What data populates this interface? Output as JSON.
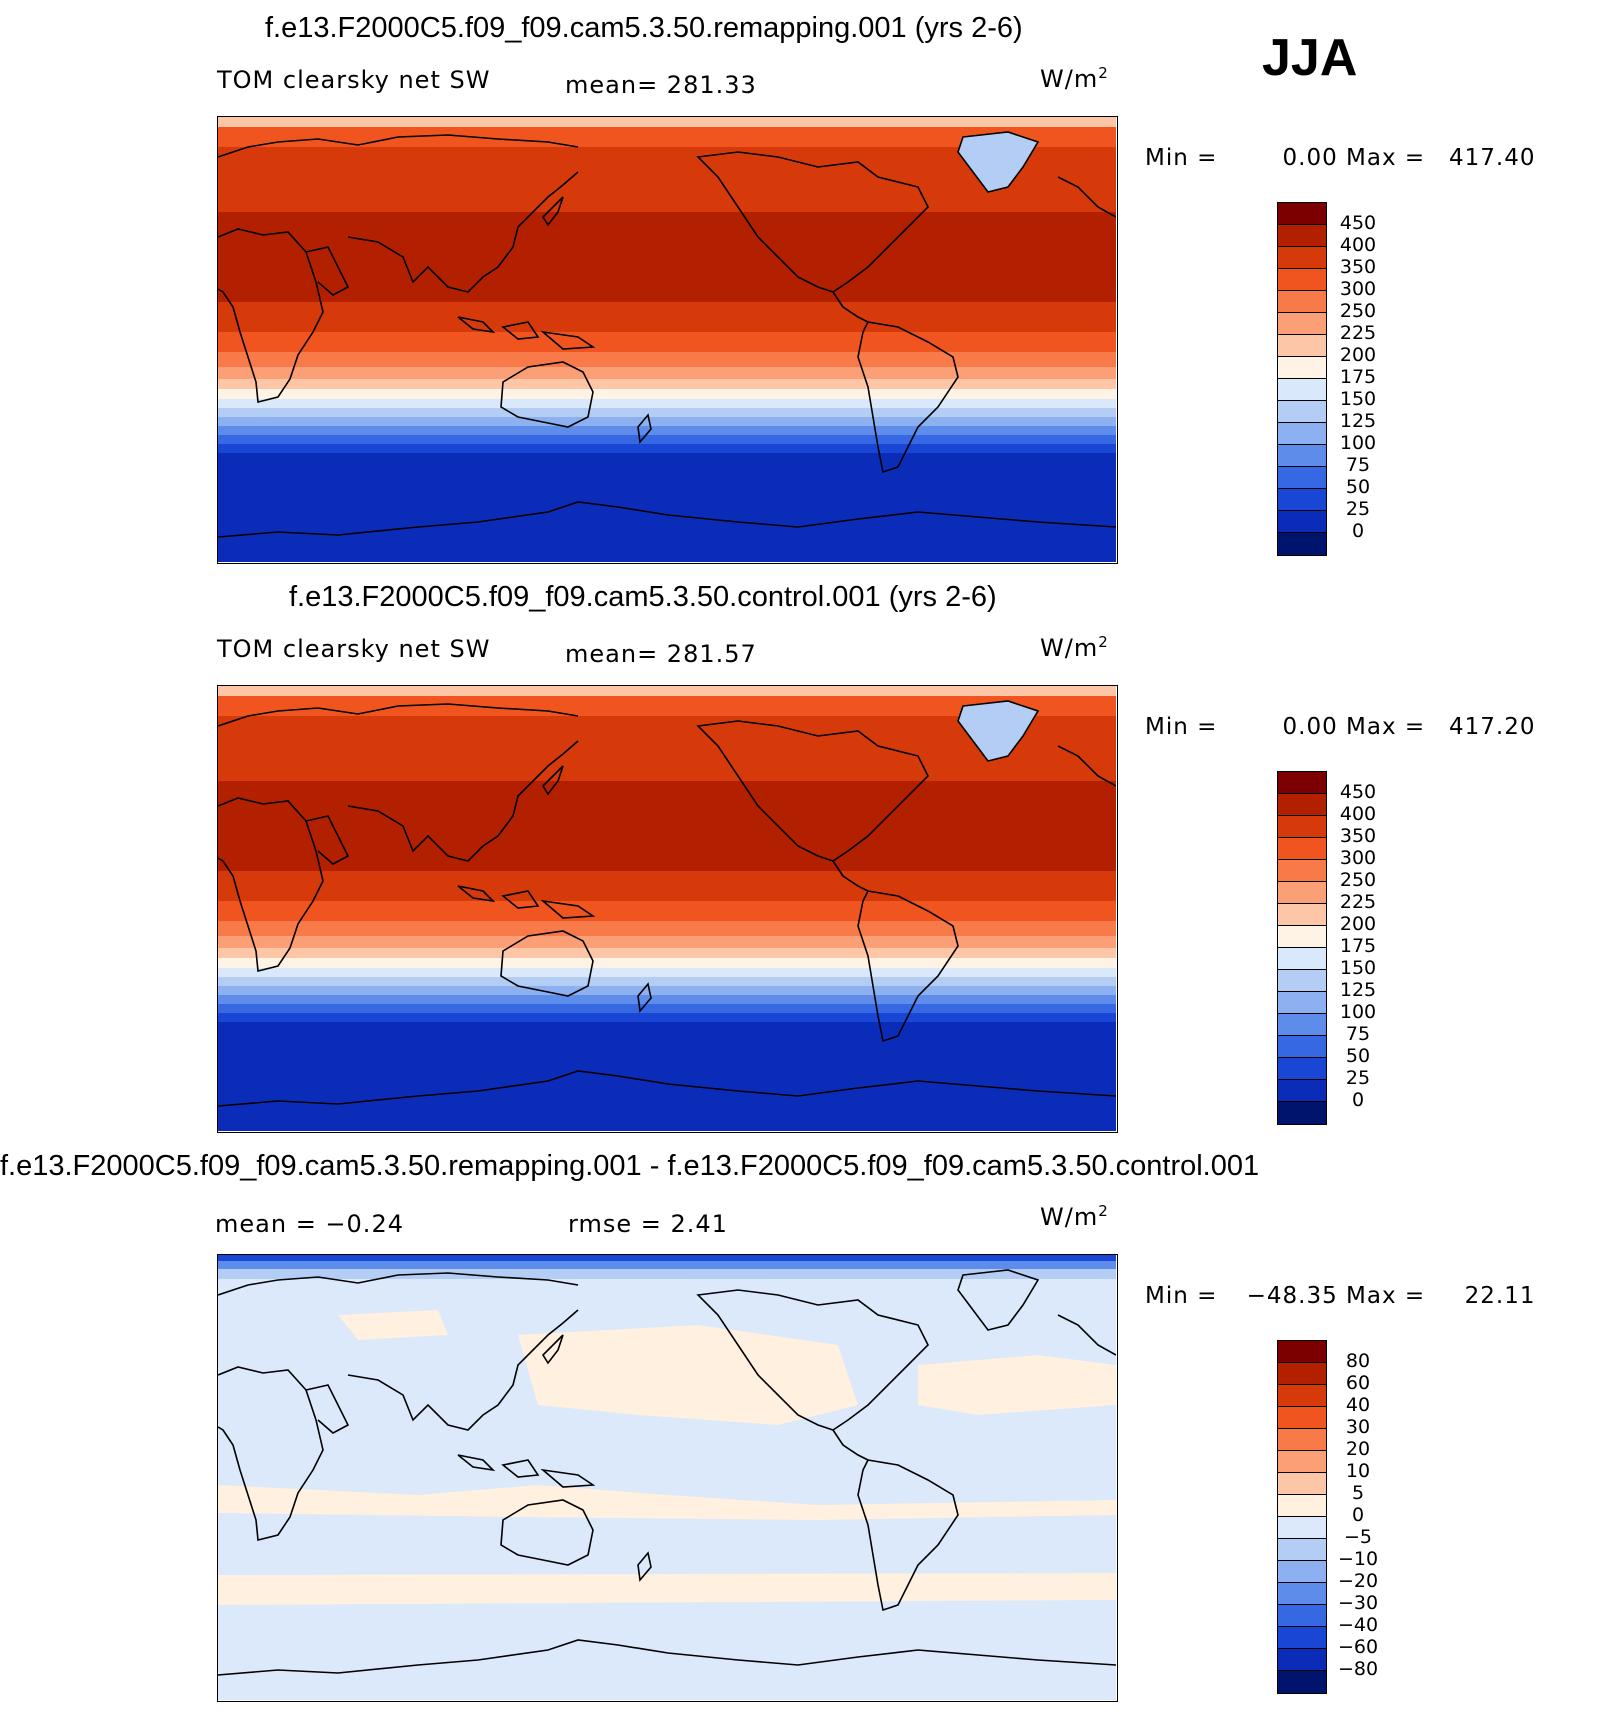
{
  "season": "JJA",
  "panels": [
    {
      "title": "f.e13.F2000C5.f09_f09.cam5.3.50.remapping.001 (yrs 2-6)",
      "left_label": "TOM clearsky net SW",
      "center_label": "mean= 281.33",
      "units": "W/m",
      "units_sup": "2",
      "min_label": "Min =",
      "min_value": "0.00",
      "max_label": "Max =",
      "max_value": "417.40",
      "colorbar_labels": [
        "450",
        "400",
        "350",
        "300",
        "250",
        "225",
        "200",
        "175",
        "150",
        "125",
        "100",
        "75",
        "50",
        "25",
        "0"
      ],
      "colorbar_colors": [
        "#7d0000",
        "#b32000",
        "#d63a0a",
        "#f05520",
        "#f77a48",
        "#fb9f76",
        "#fdc6a6",
        "#fff3e6",
        "#d9e8fa",
        "#b4cdf5",
        "#8db0f0",
        "#5e8ceb",
        "#3768e3",
        "#1a46d6",
        "#0a2cb8",
        "#00146e"
      ],
      "map_type": "absolute"
    },
    {
      "title": "f.e13.F2000C5.f09_f09.cam5.3.50.control.001 (yrs 2-6)",
      "left_label": "TOM clearsky net SW",
      "center_label": "mean= 281.57",
      "units": "W/m",
      "units_sup": "2",
      "min_label": "Min =",
      "min_value": "0.00",
      "max_label": "Max =",
      "max_value": "417.20",
      "colorbar_labels": [
        "450",
        "400",
        "350",
        "300",
        "250",
        "225",
        "200",
        "175",
        "150",
        "125",
        "100",
        "75",
        "50",
        "25",
        "0"
      ],
      "colorbar_colors": [
        "#7d0000",
        "#b32000",
        "#d63a0a",
        "#f05520",
        "#f77a48",
        "#fb9f76",
        "#fdc6a6",
        "#fff3e6",
        "#d9e8fa",
        "#b4cdf5",
        "#8db0f0",
        "#5e8ceb",
        "#3768e3",
        "#1a46d6",
        "#0a2cb8",
        "#00146e"
      ],
      "map_type": "absolute"
    },
    {
      "title": "f.e13.F2000C5.f09_f09.cam5.3.50.remapping.001 - f.e13.F2000C5.f09_f09.cam5.3.50.control.001",
      "left_label": "mean =   −0.24",
      "center_label": "rmse =    2.41",
      "units": "W/m",
      "units_sup": "2",
      "min_label": "Min =",
      "min_value": "−48.35",
      "max_label": "Max =",
      "max_value": "22.11",
      "colorbar_labels": [
        "80",
        "60",
        "40",
        "30",
        "20",
        "10",
        "5",
        "0",
        "−5",
        "−10",
        "−20",
        "−30",
        "−40",
        "−60",
        "−80"
      ],
      "colorbar_colors": [
        "#7d0000",
        "#b32000",
        "#d63a0a",
        "#f05520",
        "#f77a48",
        "#fb9f76",
        "#fdc6a6",
        "#fff0e0",
        "#dbe9fb",
        "#b4cdf5",
        "#8db0f0",
        "#5e8ceb",
        "#3768e3",
        "#1a46d6",
        "#0a2cb8",
        "#00146e"
      ],
      "map_type": "difference"
    }
  ]
}
